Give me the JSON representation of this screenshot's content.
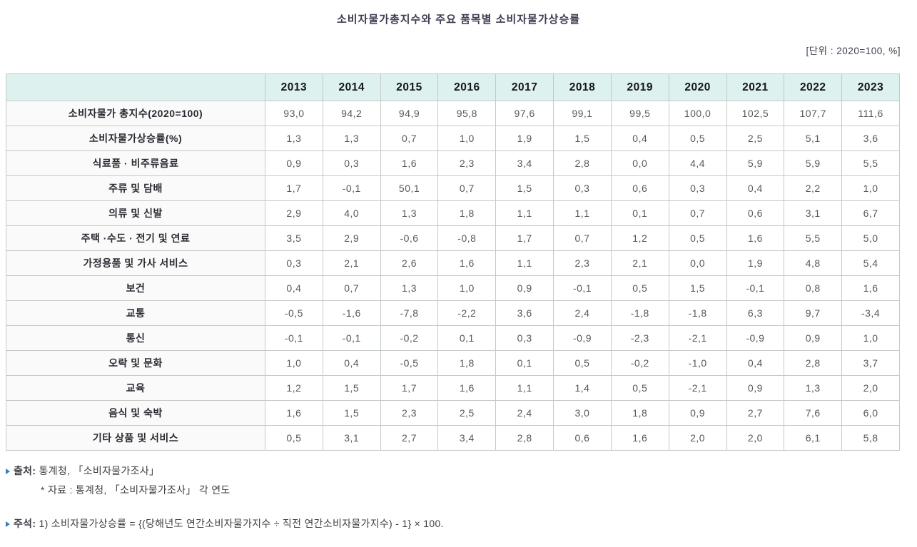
{
  "title": "소비자물가총지수와 주요 품목별 소비자물가상승률",
  "unit_label": "[단위 : 2020=100, %]",
  "table": {
    "corner": "",
    "years": [
      "2013",
      "2014",
      "2015",
      "2016",
      "2017",
      "2018",
      "2019",
      "2020",
      "2021",
      "2022",
      "2023"
    ],
    "rows": [
      {
        "label": "소비자물가 총지수(2020=100)",
        "values": [
          "93,0",
          "94,2",
          "94,9",
          "95,8",
          "97,6",
          "99,1",
          "99,5",
          "100,0",
          "102,5",
          "107,7",
          "111,6"
        ]
      },
      {
        "label": "소비자물가상승률(%)",
        "values": [
          "1,3",
          "1,3",
          "0,7",
          "1,0",
          "1,9",
          "1,5",
          "0,4",
          "0,5",
          "2,5",
          "5,1",
          "3,6"
        ]
      },
      {
        "label": "식료품 · 비주류음료",
        "values": [
          "0,9",
          "0,3",
          "1,6",
          "2,3",
          "3,4",
          "2,8",
          "0,0",
          "4,4",
          "5,9",
          "5,9",
          "5,5"
        ]
      },
      {
        "label": "주류 및 담배",
        "values": [
          "1,7",
          "-0,1",
          "50,1",
          "0,7",
          "1,5",
          "0,3",
          "0,6",
          "0,3",
          "0,4",
          "2,2",
          "1,0"
        ]
      },
      {
        "label": "의류 및 신발",
        "values": [
          "2,9",
          "4,0",
          "1,3",
          "1,8",
          "1,1",
          "1,1",
          "0,1",
          "0,7",
          "0,6",
          "3,1",
          "6,7"
        ]
      },
      {
        "label": "주택 ·수도 · 전기 및 연료",
        "values": [
          "3,5",
          "2,9",
          "-0,6",
          "-0,8",
          "1,7",
          "0,7",
          "1,2",
          "0,5",
          "1,6",
          "5,5",
          "5,0"
        ]
      },
      {
        "label": "가정용품 및 가사 서비스",
        "values": [
          "0,3",
          "2,1",
          "2,6",
          "1,6",
          "1,1",
          "2,3",
          "2,1",
          "0,0",
          "1,9",
          "4,8",
          "5,4"
        ]
      },
      {
        "label": "보건",
        "values": [
          "0,4",
          "0,7",
          "1,3",
          "1,0",
          "0,9",
          "-0,1",
          "0,5",
          "1,5",
          "-0,1",
          "0,8",
          "1,6"
        ]
      },
      {
        "label": "교통",
        "values": [
          "-0,5",
          "-1,6",
          "-7,8",
          "-2,2",
          "3,6",
          "2,4",
          "-1,8",
          "-1,8",
          "6,3",
          "9,7",
          "-3,4"
        ]
      },
      {
        "label": "통신",
        "values": [
          "-0,1",
          "-0,1",
          "-0,2",
          "0,1",
          "0,3",
          "-0,9",
          "-2,3",
          "-2,1",
          "-0,9",
          "0,9",
          "1,0"
        ]
      },
      {
        "label": "오락 및 문화",
        "values": [
          "1,0",
          "0,4",
          "-0,5",
          "1,8",
          "0,1",
          "0,5",
          "-0,2",
          "-1,0",
          "0,4",
          "2,8",
          "3,7"
        ]
      },
      {
        "label": "교육",
        "values": [
          "1,2",
          "1,5",
          "1,7",
          "1,6",
          "1,1",
          "1,4",
          "0,5",
          "-2,1",
          "0,9",
          "1,3",
          "2,0"
        ]
      },
      {
        "label": "음식 및 숙박",
        "values": [
          "1,6",
          "1,5",
          "2,3",
          "2,5",
          "2,4",
          "3,0",
          "1,8",
          "0,9",
          "2,7",
          "7,6",
          "6,0"
        ]
      },
      {
        "label": "기타 상품 및 서비스",
        "values": [
          "0,5",
          "3,1",
          "2,7",
          "3,4",
          "2,8",
          "0,6",
          "1,6",
          "2,0",
          "2,0",
          "6,1",
          "5,8"
        ]
      }
    ]
  },
  "footnotes": {
    "source_label": "출처:",
    "source_text": "통계청, 「소비자물가조사」",
    "source_sub": "* 자료 : 통계청, 「소비자물가조사」 각 연도",
    "note_label": "주석:",
    "note_text": "1) 소비자물가상승률 = {(당해년도 연간소비자물가지수 ÷ 직전 연간소비자물가지수) - 1} × 100."
  },
  "colors": {
    "header_bg": "#ddf1ee",
    "row_label_bg": "#fafafa",
    "border": "#c4cac6",
    "title_text": "#3d3d52",
    "data_text": "#58585a",
    "bullet": "#3a7cc4"
  },
  "chart_data": {
    "type": "table",
    "title": "소비자물가총지수와 주요 품목별 소비자물가상승률",
    "unit": "2020=100, %",
    "categories": [
      2013,
      2014,
      2015,
      2016,
      2017,
      2018,
      2019,
      2020,
      2021,
      2022,
      2023
    ],
    "series": [
      {
        "name": "소비자물가 총지수(2020=100)",
        "values": [
          93.0,
          94.2,
          94.9,
          95.8,
          97.6,
          99.1,
          99.5,
          100.0,
          102.5,
          107.7,
          111.6
        ]
      },
      {
        "name": "소비자물가상승률(%)",
        "values": [
          1.3,
          1.3,
          0.7,
          1.0,
          1.9,
          1.5,
          0.4,
          0.5,
          2.5,
          5.1,
          3.6
        ]
      },
      {
        "name": "식료품 · 비주류음료",
        "values": [
          0.9,
          0.3,
          1.6,
          2.3,
          3.4,
          2.8,
          0.0,
          4.4,
          5.9,
          5.9,
          5.5
        ]
      },
      {
        "name": "주류 및 담배",
        "values": [
          1.7,
          -0.1,
          50.1,
          0.7,
          1.5,
          0.3,
          0.6,
          0.3,
          0.4,
          2.2,
          1.0
        ]
      },
      {
        "name": "의류 및 신발",
        "values": [
          2.9,
          4.0,
          1.3,
          1.8,
          1.1,
          1.1,
          0.1,
          0.7,
          0.6,
          3.1,
          6.7
        ]
      },
      {
        "name": "주택 ·수도 · 전기 및 연료",
        "values": [
          3.5,
          2.9,
          -0.6,
          -0.8,
          1.7,
          0.7,
          1.2,
          0.5,
          1.6,
          5.5,
          5.0
        ]
      },
      {
        "name": "가정용품 및 가사 서비스",
        "values": [
          0.3,
          2.1,
          2.6,
          1.6,
          1.1,
          2.3,
          2.1,
          0.0,
          1.9,
          4.8,
          5.4
        ]
      },
      {
        "name": "보건",
        "values": [
          0.4,
          0.7,
          1.3,
          1.0,
          0.9,
          -0.1,
          0.5,
          1.5,
          -0.1,
          0.8,
          1.6
        ]
      },
      {
        "name": "교통",
        "values": [
          -0.5,
          -1.6,
          -7.8,
          -2.2,
          3.6,
          2.4,
          -1.8,
          -1.8,
          6.3,
          9.7,
          -3.4
        ]
      },
      {
        "name": "통신",
        "values": [
          -0.1,
          -0.1,
          -0.2,
          0.1,
          0.3,
          -0.9,
          -2.3,
          -2.1,
          -0.9,
          0.9,
          1.0
        ]
      },
      {
        "name": "오락 및 문화",
        "values": [
          1.0,
          0.4,
          -0.5,
          1.8,
          0.1,
          0.5,
          -0.2,
          -1.0,
          0.4,
          2.8,
          3.7
        ]
      },
      {
        "name": "교육",
        "values": [
          1.2,
          1.5,
          1.7,
          1.6,
          1.1,
          1.4,
          0.5,
          -2.1,
          0.9,
          1.3,
          2.0
        ]
      },
      {
        "name": "음식 및 숙박",
        "values": [
          1.6,
          1.5,
          2.3,
          2.5,
          2.4,
          3.0,
          1.8,
          0.9,
          2.7,
          7.6,
          6.0
        ]
      },
      {
        "name": "기타 상품 및 서비스",
        "values": [
          0.5,
          3.1,
          2.7,
          3.4,
          2.8,
          0.6,
          1.6,
          2.0,
          2.0,
          6.1,
          5.8
        ]
      }
    ]
  }
}
